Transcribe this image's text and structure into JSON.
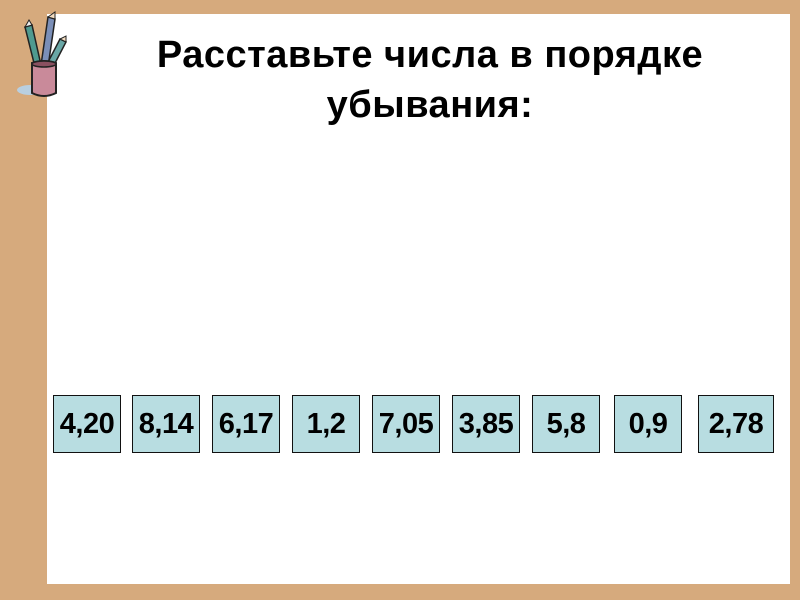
{
  "slide": {
    "title_line1": "Расставьте числа в порядке",
    "title_line2": "убывания:",
    "numbers": [
      "4,20",
      "8,14",
      "6,17",
      "1,2",
      "7,05",
      "3,85",
      "5,8",
      "0,9",
      "2,78"
    ]
  },
  "colors": {
    "background": "#d6aa7d",
    "panel": "#ffffff",
    "number_box": "#b8dde1"
  },
  "icons": {
    "decoration": "pencil-cup-icon"
  }
}
